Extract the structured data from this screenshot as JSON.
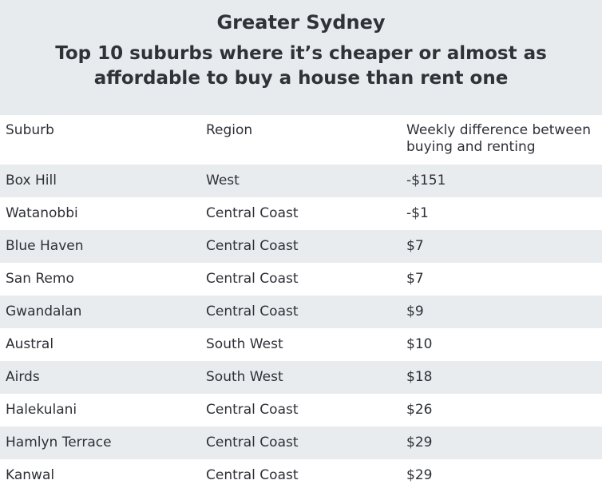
{
  "chart_data": {
    "type": "table",
    "overline": "Greater Sydney",
    "title": "Top 10 suburbs where it’s cheaper or almost as affordable to buy a house than rent one",
    "columns": [
      "Suburb",
      "Region",
      "Weekly difference between buying and renting"
    ],
    "rows": [
      [
        "Box Hill",
        "West",
        "-$151"
      ],
      [
        "Watanobbi",
        "Central Coast",
        "-$1"
      ],
      [
        "Blue Haven",
        "Central Coast",
        "$7"
      ],
      [
        "San Remo",
        "Central Coast",
        "$7"
      ],
      [
        "Gwandalan",
        "Central Coast",
        "$9"
      ],
      [
        "Austral",
        "South West",
        "$10"
      ],
      [
        "Airds",
        "South West",
        "$18"
      ],
      [
        "Halekulani",
        "Central Coast",
        "$26"
      ],
      [
        "Hamlyn Terrace",
        "Central Coast",
        "$29"
      ],
      [
        "Kanwal",
        "Central Coast",
        "$29"
      ]
    ]
  },
  "colors": {
    "header_background": "#e8ebee",
    "row_stripe": "#e9ecef",
    "text": "#2e3036"
  }
}
